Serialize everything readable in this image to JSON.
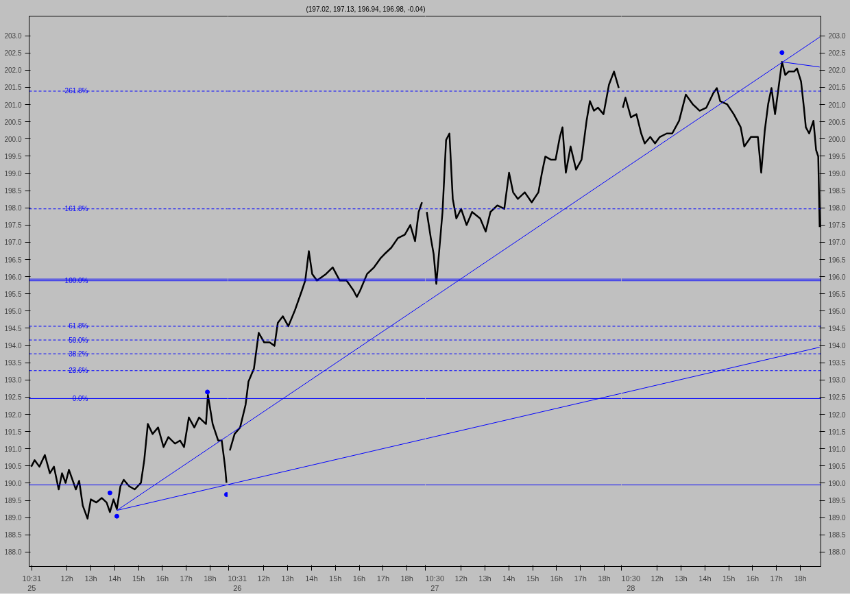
{
  "chart_data": [
    {
      "type": "line",
      "xlim": [
        10.41,
        18.75
      ],
      "xticks": [
        {
          "value": 10.52,
          "label": "10:31\n25"
        },
        {
          "value": 12,
          "label": "12h"
        },
        {
          "value": 13,
          "label": "13h"
        },
        {
          "value": 14,
          "label": "14h"
        },
        {
          "value": 15,
          "label": "15h"
        },
        {
          "value": 16,
          "label": "16h"
        },
        {
          "value": 17,
          "label": "17h"
        },
        {
          "value": 18,
          "label": "18h"
        }
      ],
      "ylim": [
        187.58,
        203.57
      ],
      "yticks": [
        {
          "value": 188,
          "label": "188.0"
        },
        {
          "value": 188.5,
          "label": "188.5"
        },
        {
          "value": 189,
          "label": "189.0"
        },
        {
          "value": 189.5,
          "label": "189.5"
        },
        {
          "value": 190,
          "label": "190.0"
        },
        {
          "value": 190.5,
          "label": "190.5"
        },
        {
          "value": 191,
          "label": "191.0"
        },
        {
          "value": 191.5,
          "label": "191.5"
        },
        {
          "value": 192,
          "label": "192.0"
        },
        {
          "value": 192.5,
          "label": "192.5"
        },
        {
          "value": 193,
          "label": "193.0"
        },
        {
          "value": 193.5,
          "label": "193.5"
        },
        {
          "value": 194,
          "label": "194.0"
        },
        {
          "value": 194.5,
          "label": "194.5"
        },
        {
          "value": 195,
          "label": "195.0"
        },
        {
          "value": 195.5,
          "label": "195.5"
        },
        {
          "value": 196,
          "label": "196.0"
        },
        {
          "value": 196.5,
          "label": "196.5"
        },
        {
          "value": 197,
          "label": "197.0"
        },
        {
          "value": 197.5,
          "label": "197.5"
        },
        {
          "value": 198,
          "label": "198.0"
        },
        {
          "value": 198.5,
          "label": "198.5"
        },
        {
          "value": 199,
          "label": "199.0"
        },
        {
          "value": 199.5,
          "label": "199.5"
        },
        {
          "value": 200,
          "label": "200.0"
        },
        {
          "value": 200.5,
          "label": "200.5"
        },
        {
          "value": 201,
          "label": "201.0"
        },
        {
          "value": 201.5,
          "label": "201.5"
        },
        {
          "value": 202,
          "label": "202.0"
        },
        {
          "value": 202.5,
          "label": "202.5"
        },
        {
          "value": 203,
          "label": "203.0"
        }
      ],
      "annotations": [
        {
          "text": "261.8%",
          "y": 201.39
        },
        {
          "text": "161.8%",
          "y": 197.97
        },
        {
          "text": "100.0%",
          "y": 195.88
        },
        {
          "text": "61.8%",
          "y": 194.56
        },
        {
          "text": "50.0%",
          "y": 194.16
        },
        {
          "text": "38.2%",
          "y": 193.76
        },
        {
          "text": "23.6%",
          "y": 193.27
        },
        {
          "text": "0.0%",
          "y": 192.46
        }
      ],
      "ref_lines": [
        {
          "axis": "y",
          "value": 201.39,
          "color": "#0000ff",
          "line_style": "dashed"
        },
        {
          "axis": "y",
          "value": 197.97,
          "color": "#0000ff",
          "line_style": "dashed"
        },
        {
          "axis": "y",
          "value": 195.93,
          "color": "#0000ff",
          "line_style": "solid"
        },
        {
          "axis": "y",
          "value": 195.88,
          "color": "#0000ff",
          "line_style": "solid"
        },
        {
          "axis": "y",
          "value": 194.56,
          "color": "#0000ff",
          "line_style": "dashed"
        },
        {
          "axis": "y",
          "value": 194.16,
          "color": "#0000ff",
          "line_style": "dashed"
        },
        {
          "axis": "y",
          "value": 193.76,
          "color": "#0000ff",
          "line_style": "dashed"
        },
        {
          "axis": "y",
          "value": 193.27,
          "color": "#0000ff",
          "line_style": "dashed"
        },
        {
          "axis": "y",
          "value": 192.46,
          "color": "#0000ff",
          "line_style": "solid"
        },
        {
          "axis": "y",
          "value": 189.95,
          "color": "#0000ff",
          "line_style": "solid"
        }
      ],
      "series": [
        {
          "color": "#000000",
          "x": [
            10.5,
            10.64,
            10.84,
            11.07,
            11.28,
            11.45,
            11.65,
            11.79,
            11.94,
            12.08,
            12.37,
            12.51,
            12.66,
            12.86,
            13.0,
            13.23,
            13.46,
            13.66,
            13.8,
            13.95,
            14.09,
            14.24,
            14.38,
            14.61,
            14.84,
            15.1,
            15.24,
            15.39,
            15.59,
            15.82,
            16.05,
            16.25,
            16.53,
            16.74,
            16.91,
            17.11,
            17.34,
            17.54,
            17.83,
            17.91,
            18.11,
            18.34,
            18.49,
            18.63,
            18.69
          ],
          "values": [
            190.48,
            190.67,
            190.48,
            190.82,
            190.29,
            190.48,
            189.82,
            190.29,
            190.01,
            190.39,
            189.82,
            190.07,
            189.35,
            188.97,
            189.53,
            189.44,
            189.57,
            189.44,
            189.16,
            189.53,
            189.25,
            189.91,
            190.1,
            189.91,
            189.82,
            190.01,
            190.67,
            191.72,
            191.43,
            191.62,
            191.05,
            191.34,
            191.15,
            191.24,
            191.05,
            191.91,
            191.62,
            191.91,
            191.72,
            192.57,
            191.72,
            191.24,
            191.24,
            190.48,
            190.01
          ]
        },
        {
          "color": "#0000ff",
          "x": [
            14.09,
            18.75
          ],
          "values": [
            189.21,
            191.38
          ]
        },
        {
          "color": "#0000ff",
          "x": [
            14.09,
            18.69,
            18.75
          ],
          "values": [
            189.21,
            189.95,
            189.96
          ]
        },
        {
          "type": "scatter",
          "color": "#0000ff",
          "x": [
            13.8,
            14.09,
            17.89,
            18.69
          ],
          "values": [
            189.72,
            189.04,
            192.65,
            189.67
          ]
        }
      ]
    },
    {
      "type": "line",
      "tick_labels": "x",
      "title": "(197.02, 197.13, 196.94, 196.98, -0.04)",
      "xlim": [
        10.5,
        18.77
      ],
      "xticks": [
        {
          "value": 10.52,
          "label": "10:31\n26"
        },
        {
          "value": 12,
          "label": "12h"
        },
        {
          "value": 13,
          "label": "13h"
        },
        {
          "value": 14,
          "label": "14h"
        },
        {
          "value": 15,
          "label": "15h"
        },
        {
          "value": 16,
          "label": "16h"
        },
        {
          "value": 17,
          "label": "17h"
        },
        {
          "value": 18,
          "label": "18h"
        }
      ],
      "ylim": [
        187.58,
        203.57
      ],
      "ref_lines": [
        {
          "axis": "y",
          "value": 201.39,
          "color": "#0000ff",
          "line_style": "dashed"
        },
        {
          "axis": "y",
          "value": 197.97,
          "color": "#0000ff",
          "line_style": "dashed"
        },
        {
          "axis": "y",
          "value": 195.93,
          "color": "#0000ff",
          "line_style": "solid"
        },
        {
          "axis": "y",
          "value": 195.88,
          "color": "#0000ff",
          "line_style": "solid"
        },
        {
          "axis": "y",
          "value": 194.56,
          "color": "#0000ff",
          "line_style": "dashed"
        },
        {
          "axis": "y",
          "value": 194.16,
          "color": "#0000ff",
          "line_style": "dashed"
        },
        {
          "axis": "y",
          "value": 193.76,
          "color": "#0000ff",
          "line_style": "dashed"
        },
        {
          "axis": "y",
          "value": 193.27,
          "color": "#0000ff",
          "line_style": "dashed"
        },
        {
          "axis": "y",
          "value": 192.46,
          "color": "#0000ff",
          "line_style": "solid"
        },
        {
          "axis": "y",
          "value": 189.95,
          "color": "#0000ff",
          "line_style": "solid"
        }
      ],
      "series": [
        {
          "color": "#000000",
          "x": [
            10.58,
            10.78,
            11.01,
            11.24,
            11.36,
            11.59,
            11.79,
            12.02,
            12.25,
            12.45,
            12.59,
            12.8,
            13.03,
            13.31,
            13.6,
            13.74,
            13.89,
            14.03,
            14.23,
            14.41,
            14.61,
            14.89,
            15.18,
            15.47,
            15.76,
            15.9,
            16.04,
            16.33,
            16.62,
            16.91,
            17.05,
            17.34,
            17.62,
            17.91,
            18.14,
            18.34,
            18.49,
            18.63
          ],
          "values": [
            190.95,
            191.43,
            191.62,
            192.28,
            192.95,
            193.33,
            194.37,
            194.09,
            194.09,
            193.99,
            194.66,
            194.85,
            194.56,
            195.03,
            195.6,
            195.89,
            196.74,
            196.08,
            195.89,
            195.98,
            196.08,
            196.27,
            195.89,
            195.89,
            195.6,
            195.41,
            195.6,
            196.08,
            196.27,
            196.55,
            196.65,
            196.84,
            197.12,
            197.22,
            197.5,
            197.03,
            197.88,
            198.16
          ]
        },
        {
          "color": "#0000ff",
          "x": [
            10.5,
            18.77
          ],
          "values": [
            191.38,
            195.24
          ]
        },
        {
          "color": "#0000ff",
          "x": [
            10.5,
            18.77
          ],
          "values": [
            189.96,
            191.29
          ]
        }
      ]
    },
    {
      "type": "line",
      "tick_labels": "x",
      "xlim": [
        10.5,
        18.72
      ],
      "xticks": [
        {
          "value": 10.5,
          "label": "10:30\n27"
        },
        {
          "value": 12,
          "label": "12h"
        },
        {
          "value": 13,
          "label": "13h"
        },
        {
          "value": 14,
          "label": "14h"
        },
        {
          "value": 15,
          "label": "15h"
        },
        {
          "value": 16,
          "label": "16h"
        },
        {
          "value": 17,
          "label": "17h"
        },
        {
          "value": 18,
          "label": "18h"
        }
      ],
      "ylim": [
        187.58,
        203.57
      ],
      "ref_lines": [
        {
          "axis": "y",
          "value": 201.39,
          "color": "#0000ff",
          "line_style": "dashed"
        },
        {
          "axis": "y",
          "value": 197.97,
          "color": "#0000ff",
          "line_style": "dashed"
        },
        {
          "axis": "y",
          "value": 195.93,
          "color": "#0000ff",
          "line_style": "solid"
        },
        {
          "axis": "y",
          "value": 195.88,
          "color": "#0000ff",
          "line_style": "solid"
        },
        {
          "axis": "y",
          "value": 194.56,
          "color": "#0000ff",
          "line_style": "dashed"
        },
        {
          "axis": "y",
          "value": 194.16,
          "color": "#0000ff",
          "line_style": "dashed"
        },
        {
          "axis": "y",
          "value": 193.76,
          "color": "#0000ff",
          "line_style": "dashed"
        },
        {
          "axis": "y",
          "value": 193.27,
          "color": "#0000ff",
          "line_style": "dashed"
        },
        {
          "axis": "y",
          "value": 192.46,
          "color": "#0000ff",
          "line_style": "solid"
        },
        {
          "axis": "y",
          "value": 189.95,
          "color": "#0000ff",
          "line_style": "solid"
        }
      ],
      "series": [
        {
          "color": "#000000",
          "x": [
            10.56,
            10.73,
            10.85,
            10.96,
            11.08,
            11.22,
            11.37,
            11.51,
            11.65,
            11.8,
            12.0,
            12.23,
            12.46,
            12.8,
            13.03,
            13.23,
            13.52,
            13.81,
            14.01,
            14.18,
            14.38,
            14.67,
            14.96,
            15.24,
            15.39,
            15.53,
            15.76,
            15.96,
            16.14,
            16.25,
            16.39,
            16.59,
            16.82,
            17.05,
            17.26,
            17.4,
            17.57,
            17.74,
            17.97,
            18.2,
            18.41,
            18.61
          ],
          "values": [
            197.88,
            197.12,
            196.65,
            195.79,
            196.74,
            197.88,
            199.97,
            200.16,
            198.26,
            197.69,
            197.97,
            197.5,
            197.88,
            197.69,
            197.31,
            197.88,
            198.07,
            197.97,
            199.02,
            198.45,
            198.26,
            198.45,
            198.16,
            198.45,
            199.02,
            199.49,
            199.4,
            199.4,
            200.06,
            200.34,
            199.02,
            199.78,
            199.11,
            199.4,
            200.53,
            201.1,
            200.82,
            200.91,
            200.72,
            201.58,
            201.96,
            201.48
          ]
        },
        {
          "color": "#0000ff",
          "x": [
            10.5,
            18.72
          ],
          "values": [
            195.24,
            199.08
          ]
        },
        {
          "color": "#0000ff",
          "x": [
            10.5,
            18.72
          ],
          "values": [
            191.29,
            192.61
          ]
        }
      ]
    },
    {
      "type": "line",
      "xlim": [
        10.5,
        18.86
      ],
      "xticks": [
        {
          "value": 10.5,
          "label": "10:30\n28"
        },
        {
          "value": 12,
          "label": "12h"
        },
        {
          "value": 13,
          "label": "13h"
        },
        {
          "value": 14,
          "label": "14h"
        },
        {
          "value": 15,
          "label": "15h"
        },
        {
          "value": 16,
          "label": "16h"
        },
        {
          "value": 17,
          "label": "17h"
        },
        {
          "value": 18,
          "label": "18h"
        }
      ],
      "ylim": [
        187.58,
        203.57
      ],
      "yticks": [
        {
          "value": 188,
          "label": "188.0"
        },
        {
          "value": 188.5,
          "label": "188.5"
        },
        {
          "value": 189,
          "label": "189.0"
        },
        {
          "value": 189.5,
          "label": "189.5"
        },
        {
          "value": 190,
          "label": "190.0"
        },
        {
          "value": 190.5,
          "label": "190.5"
        },
        {
          "value": 191,
          "label": "191.0"
        },
        {
          "value": 191.5,
          "label": "191.5"
        },
        {
          "value": 192,
          "label": "192.0"
        },
        {
          "value": 192.5,
          "label": "192.5"
        },
        {
          "value": 193,
          "label": "193.0"
        },
        {
          "value": 193.5,
          "label": "193.5"
        },
        {
          "value": 194,
          "label": "194.0"
        },
        {
          "value": 194.5,
          "label": "194.5"
        },
        {
          "value": 195,
          "label": "195.0"
        },
        {
          "value": 195.5,
          "label": "195.5"
        },
        {
          "value": 196,
          "label": "196.0"
        },
        {
          "value": 196.5,
          "label": "196.5"
        },
        {
          "value": 197,
          "label": "197.0"
        },
        {
          "value": 197.5,
          "label": "197.5"
        },
        {
          "value": 198,
          "label": "198.0"
        },
        {
          "value": 198.5,
          "label": "198.5"
        },
        {
          "value": 199,
          "label": "199.0"
        },
        {
          "value": 199.5,
          "label": "199.5"
        },
        {
          "value": 200,
          "label": "200.0"
        },
        {
          "value": 200.5,
          "label": "200.5"
        },
        {
          "value": 201,
          "label": "201.0"
        },
        {
          "value": 201.5,
          "label": "201.5"
        },
        {
          "value": 202,
          "label": "202.0"
        },
        {
          "value": 202.5,
          "label": "202.5"
        },
        {
          "value": 203,
          "label": "203.0"
        }
      ],
      "ref_lines": [
        {
          "axis": "y",
          "value": 201.39,
          "color": "#0000ff",
          "line_style": "dashed"
        },
        {
          "axis": "y",
          "value": 197.97,
          "color": "#0000ff",
          "line_style": "dashed"
        },
        {
          "axis": "y",
          "value": 195.93,
          "color": "#0000ff",
          "line_style": "solid"
        },
        {
          "axis": "y",
          "value": 195.88,
          "color": "#0000ff",
          "line_style": "solid"
        },
        {
          "axis": "y",
          "value": 194.56,
          "color": "#0000ff",
          "line_style": "dashed"
        },
        {
          "axis": "y",
          "value": 194.16,
          "color": "#0000ff",
          "line_style": "dashed"
        },
        {
          "axis": "y",
          "value": 193.76,
          "color": "#0000ff",
          "line_style": "dashed"
        },
        {
          "axis": "y",
          "value": 193.27,
          "color": "#0000ff",
          "line_style": "dashed"
        },
        {
          "axis": "y",
          "value": 192.46,
          "color": "#0000ff",
          "line_style": "solid"
        },
        {
          "axis": "y",
          "value": 189.95,
          "color": "#0000ff",
          "line_style": "solid"
        }
      ],
      "series": [
        {
          "color": "#000000",
          "x": [
            10.56,
            10.67,
            10.9,
            11.13,
            11.33,
            11.48,
            11.71,
            11.91,
            12.11,
            12.4,
            12.63,
            12.92,
            13.2,
            13.49,
            13.78,
            14.06,
            14.35,
            14.5,
            14.64,
            14.93,
            15.21,
            15.5,
            15.65,
            15.93,
            16.22,
            16.36,
            16.51,
            16.65,
            16.79,
            16.94,
            17.14,
            17.23,
            17.37,
            17.51,
            17.74,
            17.86,
            18.03,
            18.15,
            18.23,
            18.37,
            18.55,
            18.66,
            18.75,
            18.81
          ],
          "values": [
            200.91,
            201.2,
            200.63,
            200.72,
            200.16,
            199.87,
            200.06,
            199.87,
            200.06,
            200.16,
            200.16,
            200.53,
            201.29,
            201.01,
            200.82,
            200.91,
            201.33,
            201.48,
            201.1,
            201.01,
            200.72,
            200.34,
            199.78,
            200.06,
            200.06,
            199.02,
            200.25,
            201.01,
            201.48,
            200.72,
            201.77,
            202.24,
            201.86,
            201.96,
            201.96,
            202.05,
            201.67,
            200.91,
            200.34,
            200.16,
            200.53,
            199.68,
            199.49,
            197.44
          ]
        },
        {
          "color": "#0000ff",
          "x": [
            10.5,
            18.81
          ],
          "values": [
            199.08,
            202.96
          ]
        },
        {
          "color": "#0000ff",
          "x": [
            10.5,
            18.81
          ],
          "values": [
            192.61,
            193.95
          ]
        },
        {
          "color": "#0000ff",
          "x": [
            17.23,
            18.81
          ],
          "values": [
            202.24,
            202.09
          ]
        },
        {
          "type": "scatter",
          "color": "#0000ff",
          "x": [
            17.23
          ],
          "values": [
            202.51
          ]
        }
      ]
    }
  ]
}
